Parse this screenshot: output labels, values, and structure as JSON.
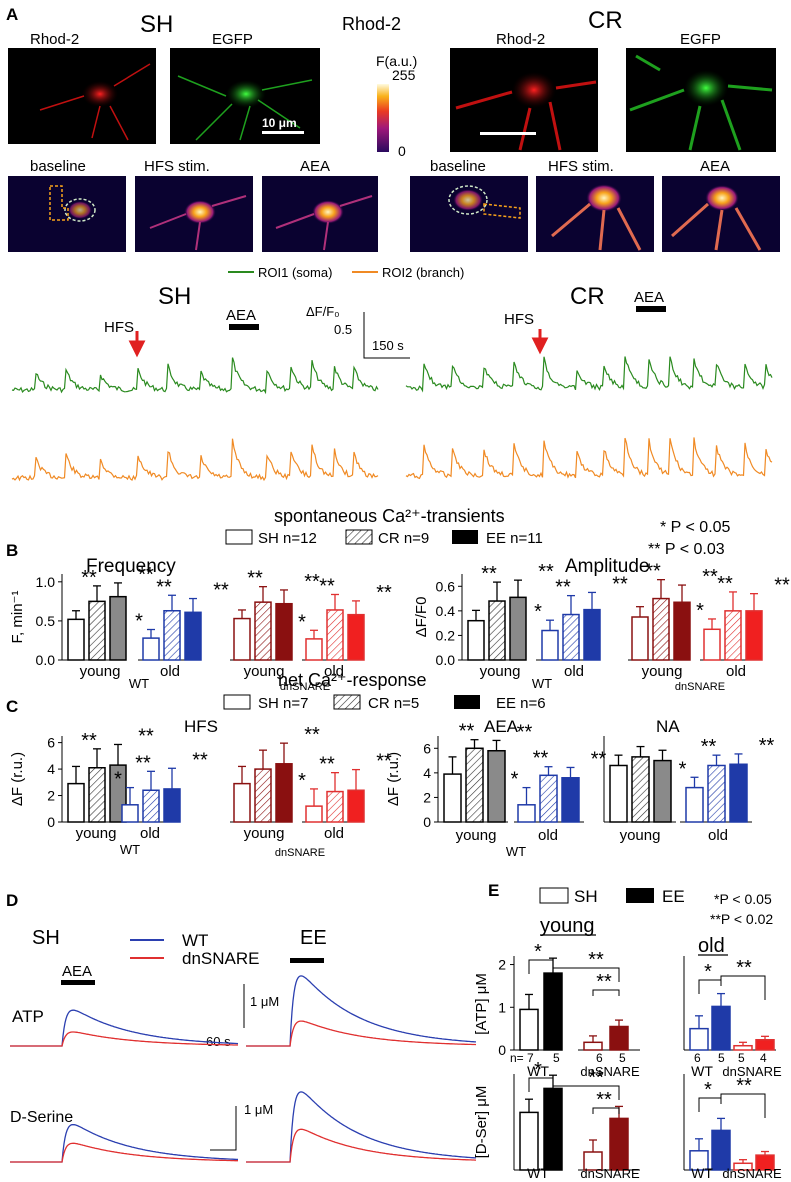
{
  "panels": {
    "A": {
      "letter": "A",
      "sh_label": "SH",
      "cr_label": "CR",
      "center_label": "Rhod-2",
      "images_top": {
        "left_1": "Rhod-2",
        "left_2": "EGFP",
        "right_1": "Rhod-2",
        "right_2": "EGFP"
      },
      "scale_bar": "10 μm",
      "colorbar": {
        "label": "F(a.u.)",
        "max": "255",
        "min": "0"
      },
      "images_bottom": {
        "left_1": "baseline",
        "left_2": "HFS stim.",
        "left_3": "AEA",
        "right_1": "baseline",
        "right_2": "HFS stim.",
        "right_3": "AEA"
      },
      "legend": {
        "roi1": "ROI1 (soma)",
        "roi2": "ROI2 (branch)"
      },
      "colors": {
        "roi1": "#2a8a1f",
        "roi2": "#f08a24",
        "stim_arrow": "#e02020"
      },
      "traces": {
        "left_title": "SH",
        "right_title": "CR",
        "hfs_left": "HFS",
        "hfs_right": "HFS",
        "aea_left": "AEA",
        "aea_right": "AEA",
        "scale_y_label": "ΔF/F₀",
        "scale_y_value": "0.5",
        "scale_x": "150 s"
      }
    },
    "B": {
      "letter": "B",
      "title": "spontaneous  Ca²⁺-transients",
      "legend": {
        "sh": "SH n=12",
        "cr": "CR  n=9",
        "ee": "EE  n=11"
      },
      "pvals": {
        "single": "* P < 0.05",
        "double": "** P < 0.03"
      },
      "freq_title": "Frequency",
      "amp_title": "Amplitude",
      "freq_ylabel": "F, min⁻¹",
      "amp_ylabel": "ΔF/F0",
      "freq_ticks": [
        "0.0",
        "0.5",
        "1.0"
      ],
      "amp_ticks": [
        "0.0",
        "0.2",
        "0.4",
        "0.6"
      ],
      "x_labels": {
        "young": "young",
        "old": "old",
        "wt": "WT",
        "dn": "dnSNARE"
      }
    },
    "C": {
      "letter": "C",
      "title": "net Ca²⁺-response",
      "legend": {
        "sh": "SH n=7",
        "cr": "CR  n=5",
        "ee": "EE  n=6"
      },
      "hfs_title": "HFS",
      "aea_title": "AEA",
      "na_title": "NA",
      "ylabel": "ΔF (r.u.)",
      "hfs_ticks": [
        "0",
        "2",
        "4",
        "6"
      ],
      "aea_ticks": [
        "0",
        "2",
        "4",
        "6"
      ],
      "x_labels": {
        "young": "young",
        "old": "old",
        "wt": "WT",
        "dn": "dnSNARE"
      }
    },
    "D": {
      "letter": "D",
      "sh_label": "SH",
      "ee_label": "EE",
      "legend": {
        "wt": "WT",
        "dn": "dnSNARE"
      },
      "aea": "AEA",
      "atp": "ATP",
      "dser": "D-Serine",
      "scale_1": "1 μM",
      "scale_2": "1 μM",
      "scale_t": "60 s",
      "colors": {
        "wt": "#2b3fb0",
        "dn": "#e03030"
      }
    },
    "E": {
      "letter": "E",
      "legend": {
        "sh": "SH",
        "ee": "EE"
      },
      "pvals": {
        "single": "*P < 0.05",
        "double": "**P < 0.02"
      },
      "young": "young",
      "old": "old",
      "atp_ylabel": "[ATP] μM",
      "dser_ylabel": "[D-Ser] μM",
      "atp_ticks": [
        "0",
        "1",
        "2"
      ],
      "n_young": [
        "n= 7",
        "5",
        "6",
        "5"
      ],
      "n_old": [
        "6",
        "5",
        "5",
        "4"
      ],
      "x_labels": {
        "wt": "WT",
        "dn": "dnSNARE"
      }
    }
  },
  "chart_data": [
    {
      "type": "bar",
      "title": "Frequency",
      "ylabel": "F, min⁻¹",
      "ylim": [
        0,
        1.1
      ],
      "groups": [
        "WT young",
        "WT old",
        "dnSNARE young",
        "dnSNARE old"
      ],
      "series": [
        {
          "name": "SH",
          "values": [
            0.52,
            0.28,
            0.53,
            0.27
          ]
        },
        {
          "name": "CR",
          "values": [
            0.75,
            0.63,
            0.74,
            0.64
          ]
        },
        {
          "name": "EE",
          "values": [
            0.81,
            0.61,
            0.72,
            0.58
          ]
        }
      ]
    },
    {
      "type": "bar",
      "title": "Amplitude",
      "ylabel": "ΔF/F0",
      "ylim": [
        0,
        0.7
      ],
      "groups": [
        "WT young",
        "WT old",
        "dnSNARE young",
        "dnSNARE old"
      ],
      "series": [
        {
          "name": "SH",
          "values": [
            0.32,
            0.24,
            0.35,
            0.25
          ]
        },
        {
          "name": "CR",
          "values": [
            0.48,
            0.37,
            0.5,
            0.4
          ]
        },
        {
          "name": "EE",
          "values": [
            0.51,
            0.41,
            0.47,
            0.4
          ]
        }
      ]
    },
    {
      "type": "bar",
      "title": "HFS",
      "ylabel": "ΔF (r.u.)",
      "ylim": [
        0,
        6.5
      ],
      "groups": [
        "WT young",
        "WT old",
        "dnSNARE young",
        "dnSNARE old"
      ],
      "series": [
        {
          "name": "SH",
          "values": [
            2.9,
            1.3,
            2.9,
            1.2
          ]
        },
        {
          "name": "CR",
          "values": [
            4.1,
            2.4,
            4.0,
            2.3
          ]
        },
        {
          "name": "EE",
          "values": [
            4.3,
            2.5,
            4.4,
            2.4
          ]
        }
      ]
    },
    {
      "type": "bar",
      "title": "AEA",
      "ylabel": "ΔF (r.u.)",
      "ylim": [
        0,
        7
      ],
      "groups": [
        "WT young",
        "WT old"
      ],
      "series": [
        {
          "name": "SH",
          "values": [
            3.9,
            1.4
          ]
        },
        {
          "name": "CR",
          "values": [
            6.0,
            3.8
          ]
        },
        {
          "name": "EE",
          "values": [
            5.8,
            3.6
          ]
        }
      ]
    },
    {
      "type": "bar",
      "title": "NA",
      "ylabel": "ΔF (r.u.)",
      "ylim": [
        0,
        7
      ],
      "groups": [
        "young",
        "old"
      ],
      "series": [
        {
          "name": "SH",
          "values": [
            4.6,
            2.8
          ]
        },
        {
          "name": "CR",
          "values": [
            5.3,
            4.6
          ]
        },
        {
          "name": "EE",
          "values": [
            5.0,
            4.7
          ]
        }
      ]
    },
    {
      "type": "bar",
      "title": "[ATP]",
      "ylabel": "[ATP] μM",
      "ylim": [
        0,
        2.2
      ],
      "groups": [
        "young WT",
        "young dnSNARE",
        "old WT",
        "old dnSNARE"
      ],
      "series": [
        {
          "name": "SH",
          "values": [
            0.95,
            0.18,
            0.5,
            0.1
          ]
        },
        {
          "name": "EE",
          "values": [
            1.8,
            0.55,
            1.02,
            0.24
          ]
        }
      ]
    },
    {
      "type": "bar",
      "title": "[D-Ser]",
      "ylabel": "[D-Ser] μM",
      "ylim": [
        0,
        4
      ],
      "groups": [
        "young WT",
        "young dnSNARE",
        "old WT",
        "old dnSNARE"
      ],
      "series": [
        {
          "name": "SH",
          "values": [
            2.4,
            0.75,
            0.8,
            0.28
          ]
        },
        {
          "name": "EE",
          "values": [
            3.4,
            2.15,
            1.65,
            0.62
          ]
        }
      ]
    }
  ]
}
